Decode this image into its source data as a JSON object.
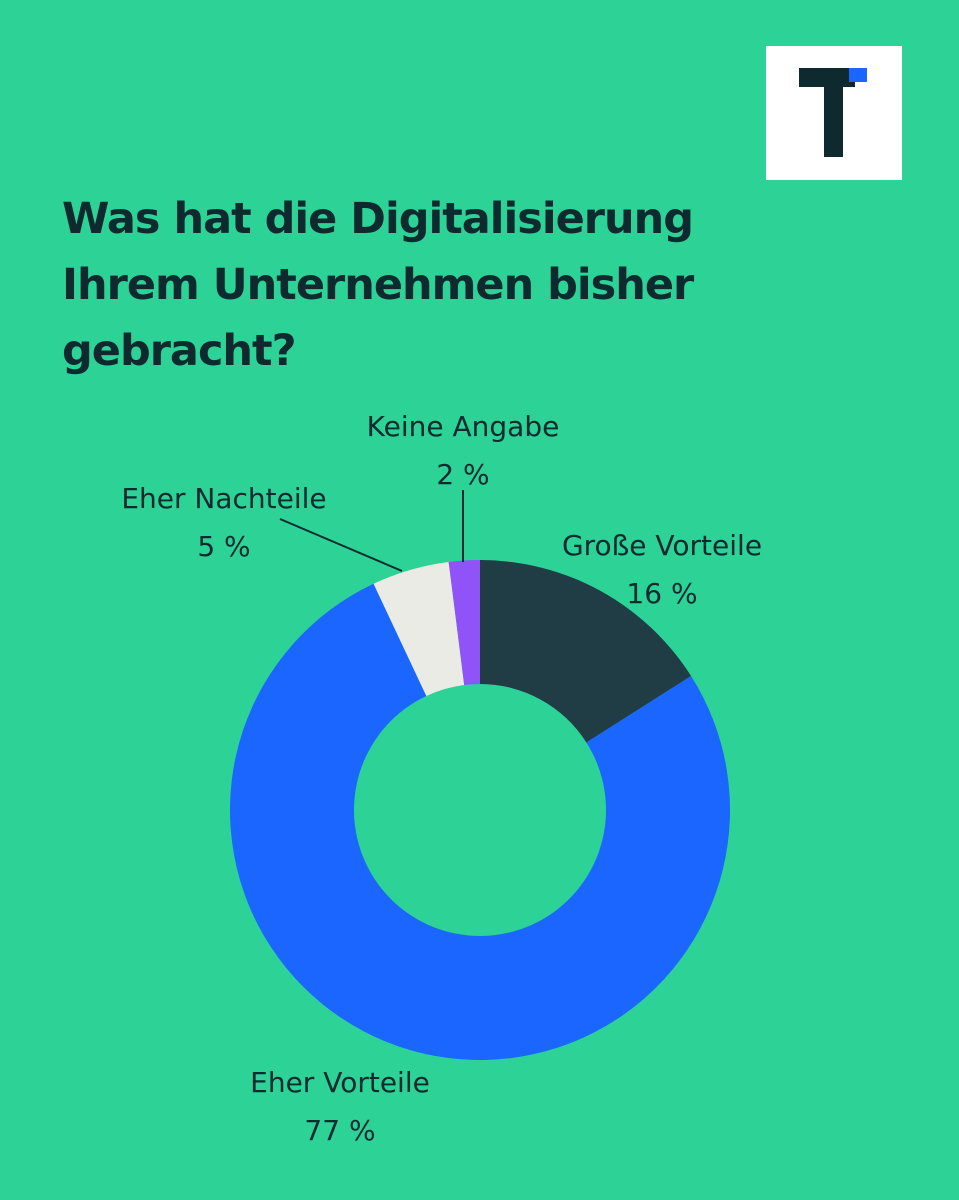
{
  "logo": {
    "name": "t3n-logo-icon",
    "bg_color": "#ffffff",
    "stem_color": "#0e2a2f",
    "accent_color": "#1a66ff"
  },
  "title_lines": [
    "Was hat die Digitalisierung",
    "Ihrem Unternehmen bisher",
    "gebracht?"
  ],
  "colors": {
    "background": "#2cd296",
    "text": "#0e2a2f"
  },
  "chart_data": {
    "type": "pie",
    "donut": true,
    "title": "Was hat die Digitalisierung Ihrem Unternehmen bisher gebracht?",
    "unit": "%",
    "slices": [
      {
        "label": "Große Vorteile",
        "value": 16,
        "value_label": "16 %",
        "color": "#203c45"
      },
      {
        "label": "Eher Vorteile",
        "value": 77,
        "value_label": "77 %",
        "color": "#1a66ff"
      },
      {
        "label": "Eher Nachteile",
        "value": 5,
        "value_label": "5 %",
        "color": "#ebebe6"
      },
      {
        "label": "Keine Angabe",
        "value": 2,
        "value_label": "2 %",
        "color": "#9053f7"
      }
    ]
  }
}
